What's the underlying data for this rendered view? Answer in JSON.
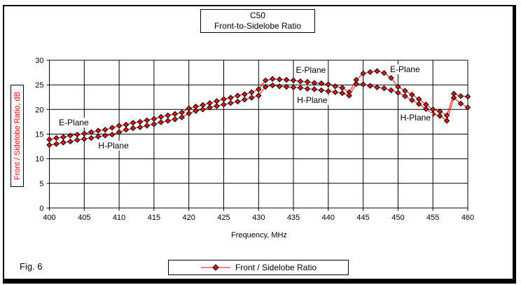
{
  "figure": {
    "caption": "Fig. 6"
  },
  "title": {
    "line1": "C50",
    "line2": "Front-to-Sidelobe Ratio"
  },
  "axes": {
    "x_label": "Frequency, MHz",
    "y_label": "Front / Sidelobe Ratio,  dB"
  },
  "legend": {
    "label": "Front / Sidelobe Ratio"
  },
  "colors": {
    "series_line": "#ff0000",
    "marker_fill": "#ee1111",
    "marker_border": "#000000",
    "y_label_text": "#ff0000",
    "grid": "#000000"
  },
  "chart_data": {
    "type": "line",
    "title": "C50 Front-to-Sidelobe Ratio",
    "xlabel": "Frequency, MHz",
    "ylabel": "Front / Sidelobe Ratio, dB",
    "xlim": [
      400,
      460
    ],
    "ylim": [
      0,
      30
    ],
    "x_tick_step": 5,
    "y_tick_step": 5,
    "grid": true,
    "legend_position": "bottom",
    "x_start": 400,
    "x_step": 1,
    "series": [
      {
        "name": "E-Plane",
        "values": [
          13.9,
          14.2,
          14.4,
          14.7,
          14.9,
          15.1,
          15.4,
          15.7,
          15.9,
          16.3,
          16.7,
          16.9,
          17.3,
          17.5,
          17.8,
          18.1,
          18.5,
          18.8,
          19.1,
          19.4,
          20.2,
          20.6,
          20.9,
          21.3,
          21.7,
          22.1,
          22.4,
          22.8,
          23.1,
          23.5,
          24.1,
          25.9,
          26.2,
          26.1,
          26.0,
          25.9,
          25.7,
          25.6,
          25.4,
          25.3,
          25.1,
          24.7,
          24.4,
          23.5,
          26.0,
          27.3,
          27.6,
          27.8,
          27.4,
          26.4,
          24.6,
          23.8,
          23.0,
          22.1,
          21.0,
          20.0,
          19.6,
          18.8,
          23.2,
          22.7,
          22.6
        ]
      },
      {
        "name": "H-Plane",
        "values": [
          12.8,
          13.0,
          13.3,
          13.5,
          13.8,
          14.0,
          14.2,
          14.5,
          14.7,
          14.9,
          15.4,
          15.9,
          16.2,
          16.4,
          16.7,
          17.0,
          17.4,
          17.7,
          18.0,
          18.4,
          19.2,
          19.7,
          20.0,
          20.4,
          20.7,
          21.0,
          21.3,
          21.6,
          22.0,
          22.4,
          22.8,
          24.6,
          24.9,
          24.7,
          24.6,
          24.5,
          24.4,
          24.2,
          24.1,
          23.9,
          23.7,
          23.5,
          23.3,
          22.8,
          25.2,
          25.1,
          24.8,
          24.5,
          24.3,
          23.9,
          23.4,
          22.7,
          21.9,
          21.1,
          20.1,
          19.1,
          18.7,
          17.7,
          22.4,
          21.2,
          20.4
        ]
      }
    ],
    "annotations": [
      {
        "text": "E-Plane",
        "x": 403.5,
        "y": 17.3
      },
      {
        "text": "H-Plane",
        "x": 409.2,
        "y": 12.6
      },
      {
        "text": "E-Plane",
        "x": 437.5,
        "y": 28.0
      },
      {
        "text": "H-Plane",
        "x": 437.7,
        "y": 21.9
      },
      {
        "text": "E-Plane",
        "x": 451.0,
        "y": 28.1
      },
      {
        "text": "H-Plane",
        "x": 452.5,
        "y": 18.3
      }
    ]
  }
}
